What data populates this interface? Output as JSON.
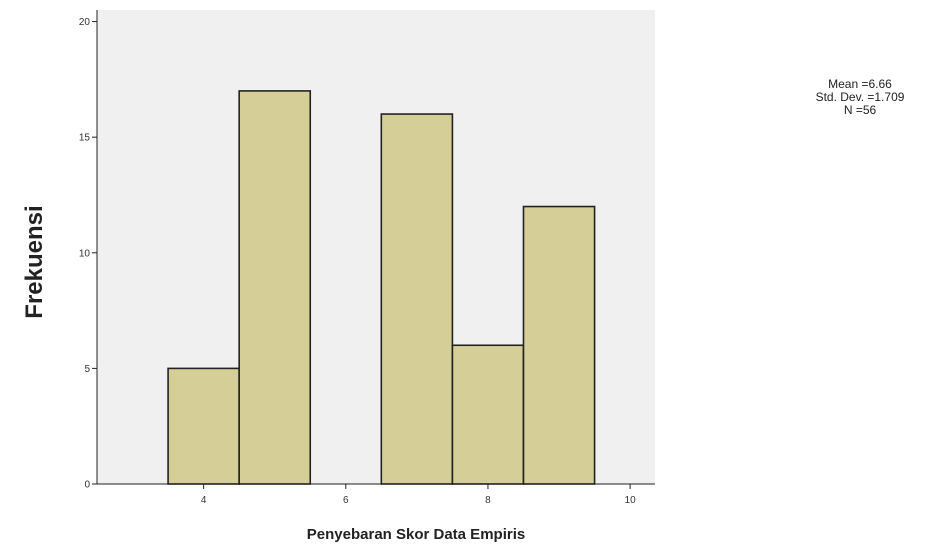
{
  "chart_data": {
    "type": "bar",
    "title": "",
    "xlabel": "Penyebaran Skor Data Empiris",
    "ylabel": "Frekuensi",
    "bins": [
      {
        "from": 3.5,
        "to": 4.5,
        "value": 5
      },
      {
        "from": 4.5,
        "to": 5.5,
        "value": 17
      },
      {
        "from": 6.5,
        "to": 7.5,
        "value": 16
      },
      {
        "from": 7.5,
        "to": 8.5,
        "value": 6
      },
      {
        "from": 8.5,
        "to": 9.5,
        "value": 12
      }
    ],
    "xlim": [
      2.5,
      10.35
    ],
    "ylim": [
      0,
      20.5
    ],
    "xticks": [
      4,
      6,
      8,
      10
    ],
    "yticks": [
      0,
      5,
      10,
      15,
      20
    ],
    "grid": false,
    "colors": {
      "bar_fill": "#d5cf97",
      "bar_stroke": "#222222",
      "plot_bg": "#f0f0f0"
    }
  },
  "stats": {
    "mean": "Mean =6.66",
    "std": "Std. Dev. =1.709",
    "n": "N =56"
  }
}
